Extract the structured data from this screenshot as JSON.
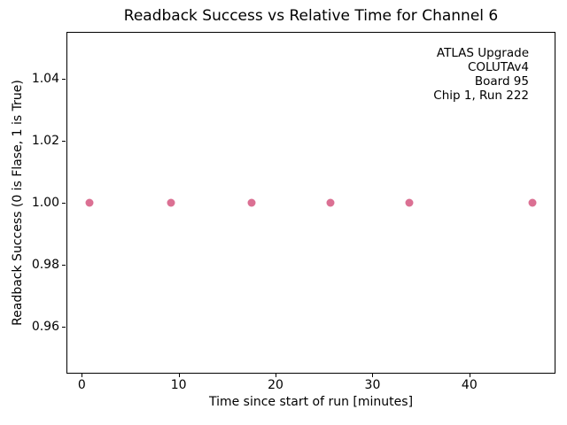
{
  "chart_data": {
    "type": "scatter",
    "title": "Readback Success vs Relative Time for Channel 6",
    "xlabel": "Time since start of run [minutes]",
    "ylabel": "Readback Success (0 is Flase, 1 is True)",
    "x": [
      0.8,
      9.2,
      17.5,
      25.7,
      33.8,
      46.5
    ],
    "y": [
      1.0,
      1.0,
      1.0,
      1.0,
      1.0,
      1.0
    ],
    "xlim": [
      -1.58,
      48.88
    ],
    "ylim": [
      0.945,
      1.055
    ],
    "xticks": [
      0,
      10,
      20,
      30,
      40
    ],
    "xtick_labels": [
      "0",
      "10",
      "20",
      "30",
      "40"
    ],
    "yticks": [
      0.96,
      0.98,
      1.0,
      1.02,
      1.04
    ],
    "ytick_labels": [
      "0.96",
      "0.98",
      "1.00",
      "1.02",
      "1.04"
    ],
    "grid": true,
    "legend_position": "none",
    "marker_color": "#db7093",
    "grid_color": "#b0b0b0",
    "annotation_lines": [
      "ATLAS Upgrade",
      "COLUTAv4",
      "Board 95",
      "Chip 1, Run 222"
    ]
  }
}
